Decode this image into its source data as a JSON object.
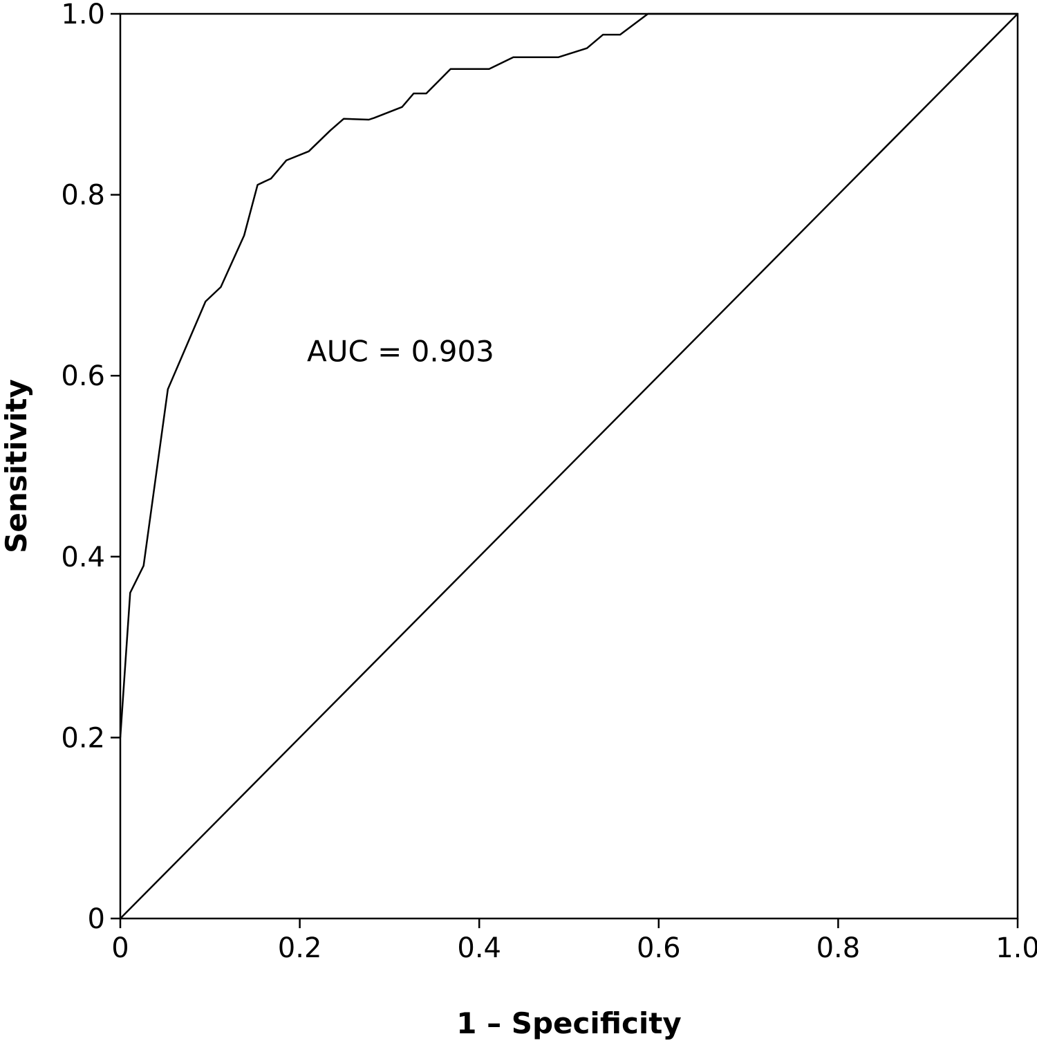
{
  "chart_data": {
    "type": "line",
    "xlabel": "1 – Specificity",
    "ylabel": "Sensitivity",
    "xlim": [
      0,
      1
    ],
    "ylim": [
      0,
      1
    ],
    "x_ticks": [
      0,
      0.2,
      0.4,
      0.6,
      0.8,
      1.0
    ],
    "x_tick_labels": [
      "0",
      "0.2",
      "0.4",
      "0.6",
      "0.8",
      "1.0"
    ],
    "y_ticks": [
      0,
      0.2,
      0.4,
      0.6,
      0.8,
      1.0
    ],
    "y_tick_labels": [
      "0",
      "0.2",
      "0.4",
      "0.6",
      "0.8",
      "1.0"
    ],
    "grid": false,
    "annotation": "AUC = 0.903",
    "series": [
      {
        "x": [
          0,
          0.011,
          0.026,
          0.053,
          0.095,
          0.112,
          0.138,
          0.153,
          0.168,
          0.185,
          0.21,
          0.234,
          0.249,
          0.277,
          0.283,
          0.314,
          0.327,
          0.341,
          0.368,
          0.411,
          0.438,
          0.488,
          0.52,
          0.538,
          0.557,
          0.588,
          1.0
        ],
        "y": [
          0.2,
          0.36,
          0.39,
          0.585,
          0.682,
          0.698,
          0.755,
          0.811,
          0.818,
          0.838,
          0.848,
          0.871,
          0.884,
          0.883,
          0.885,
          0.897,
          0.912,
          0.912,
          0.939,
          0.939,
          0.952,
          0.952,
          0.962,
          0.977,
          0.977,
          1.0,
          1.0
        ],
        "color": "#000000"
      },
      {
        "x": [
          0,
          1
        ],
        "y": [
          0,
          1
        ],
        "color": "#000000"
      }
    ]
  }
}
